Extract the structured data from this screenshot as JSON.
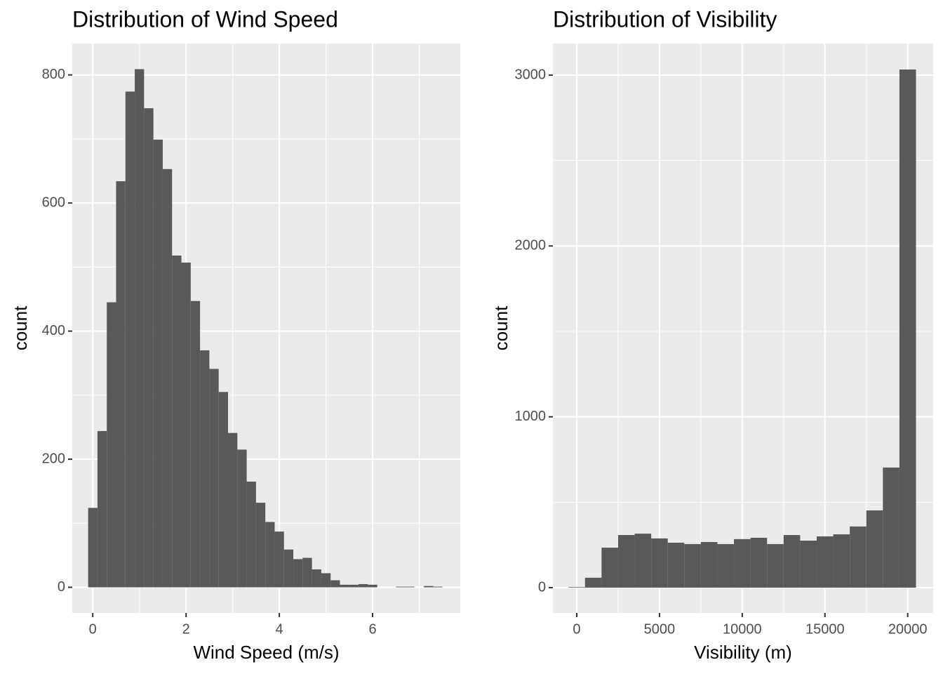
{
  "chart_data": [
    {
      "type": "histogram",
      "title": "Distribution of Wind Speed",
      "x_label": "Wind Speed (m/s)",
      "y_label": "count",
      "bins": [
        -0.1,
        0.1,
        0.3,
        0.5,
        0.7,
        0.9,
        1.1,
        1.3,
        1.5,
        1.7,
        1.9,
        2.1,
        2.3,
        2.5,
        2.7,
        2.9,
        3.1,
        3.3,
        3.5,
        3.7,
        3.9,
        4.1,
        4.3,
        4.5,
        4.7,
        4.9,
        5.1,
        5.3,
        5.5,
        5.7,
        5.9,
        6.1,
        6.3,
        6.5,
        6.7,
        6.9,
        7.1,
        7.3,
        7.5
      ],
      "counts": [
        124,
        244,
        445,
        634,
        774,
        809,
        748,
        699,
        653,
        518,
        507,
        447,
        370,
        341,
        305,
        241,
        215,
        165,
        132,
        102,
        87,
        59,
        44,
        46,
        28,
        22,
        11,
        4,
        4,
        5,
        4,
        0,
        0,
        1,
        1,
        0,
        2,
        1
      ],
      "xlim": [
        -0.44,
        7.88
      ],
      "ylim": [
        -40,
        849
      ],
      "xticks": [
        0,
        2,
        4,
        6
      ],
      "yticks": [
        0,
        200,
        400,
        600,
        800
      ],
      "color": "#595959",
      "grid": true
    },
    {
      "type": "histogram",
      "title": "Distribution of Visibility",
      "x_label": "Visibility (m)",
      "y_label": "count",
      "bins": [
        -500,
        500,
        1500,
        2500,
        3500,
        4500,
        5500,
        6500,
        7500,
        8500,
        9500,
        10500,
        11500,
        12500,
        13500,
        14500,
        15500,
        16500,
        17500,
        18500,
        19500,
        20500
      ],
      "counts": [
        3,
        58,
        234,
        308,
        316,
        288,
        263,
        255,
        267,
        255,
        284,
        292,
        255,
        308,
        275,
        300,
        312,
        358,
        452,
        703,
        3033
      ],
      "xlim": [
        -1441,
        21539
      ],
      "ylim": [
        -148,
        3185
      ],
      "xticks": [
        0,
        5000,
        10000,
        15000,
        20000
      ],
      "yticks": [
        0,
        1000,
        2000,
        3000
      ],
      "color": "#595959",
      "grid": true
    }
  ]
}
